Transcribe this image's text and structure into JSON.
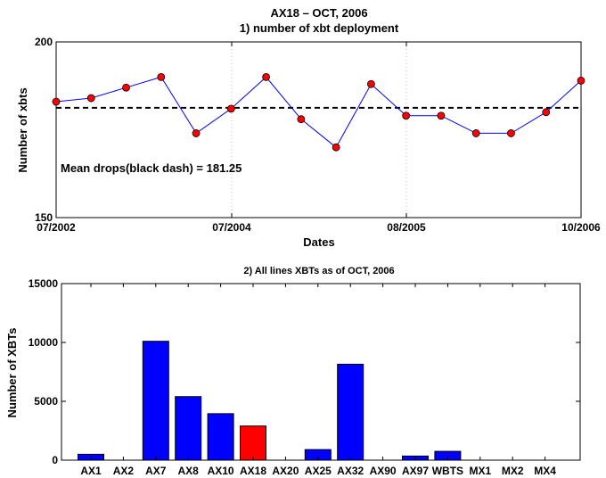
{
  "chart_data": [
    {
      "type": "line",
      "title": "AX18 – OCT, 2006",
      "subtitle": "1) number of xbt deployment",
      "xlabel": "Dates",
      "ylabel": "Number of xbts",
      "ylim": [
        150,
        200
      ],
      "yticks": [
        "150",
        "200"
      ],
      "xticks": [
        "07/2002",
        "07/2004",
        "08/2005",
        "10/2006"
      ],
      "grid": "x-dotted",
      "series": [
        {
          "values": [
            183,
            184,
            187,
            190,
            174,
            181,
            190,
            178,
            170,
            188,
            179,
            179,
            174,
            174,
            180,
            189
          ]
        }
      ],
      "mean_value": 181.25,
      "annotation": "Mean drops(black dash) = 181.25",
      "colors": {
        "line": "#0000ff",
        "marker": "#ff0000",
        "mean": "#000000"
      }
    },
    {
      "type": "bar",
      "title": "2) All lines XBTs as of OCT, 2006",
      "ylabel": "Number of XBTs",
      "ylim": [
        0,
        15000
      ],
      "yticks": [
        "0",
        "5000",
        "10000",
        "15000"
      ],
      "categories": [
        "AX1",
        "AX2",
        "AX7",
        "AX8",
        "AX10",
        "AX18",
        "AX20",
        "AX25",
        "AX32",
        "AX90",
        "AX97",
        "WBTS",
        "MX1",
        "MX2",
        "MX4"
      ],
      "values": [
        500,
        0,
        10100,
        5400,
        3950,
        2900,
        0,
        900,
        8150,
        0,
        350,
        750,
        0,
        0,
        0
      ],
      "highlight": "AX18",
      "colors": {
        "bar": "#0000ff",
        "highlight": "#ff0000"
      }
    }
  ]
}
